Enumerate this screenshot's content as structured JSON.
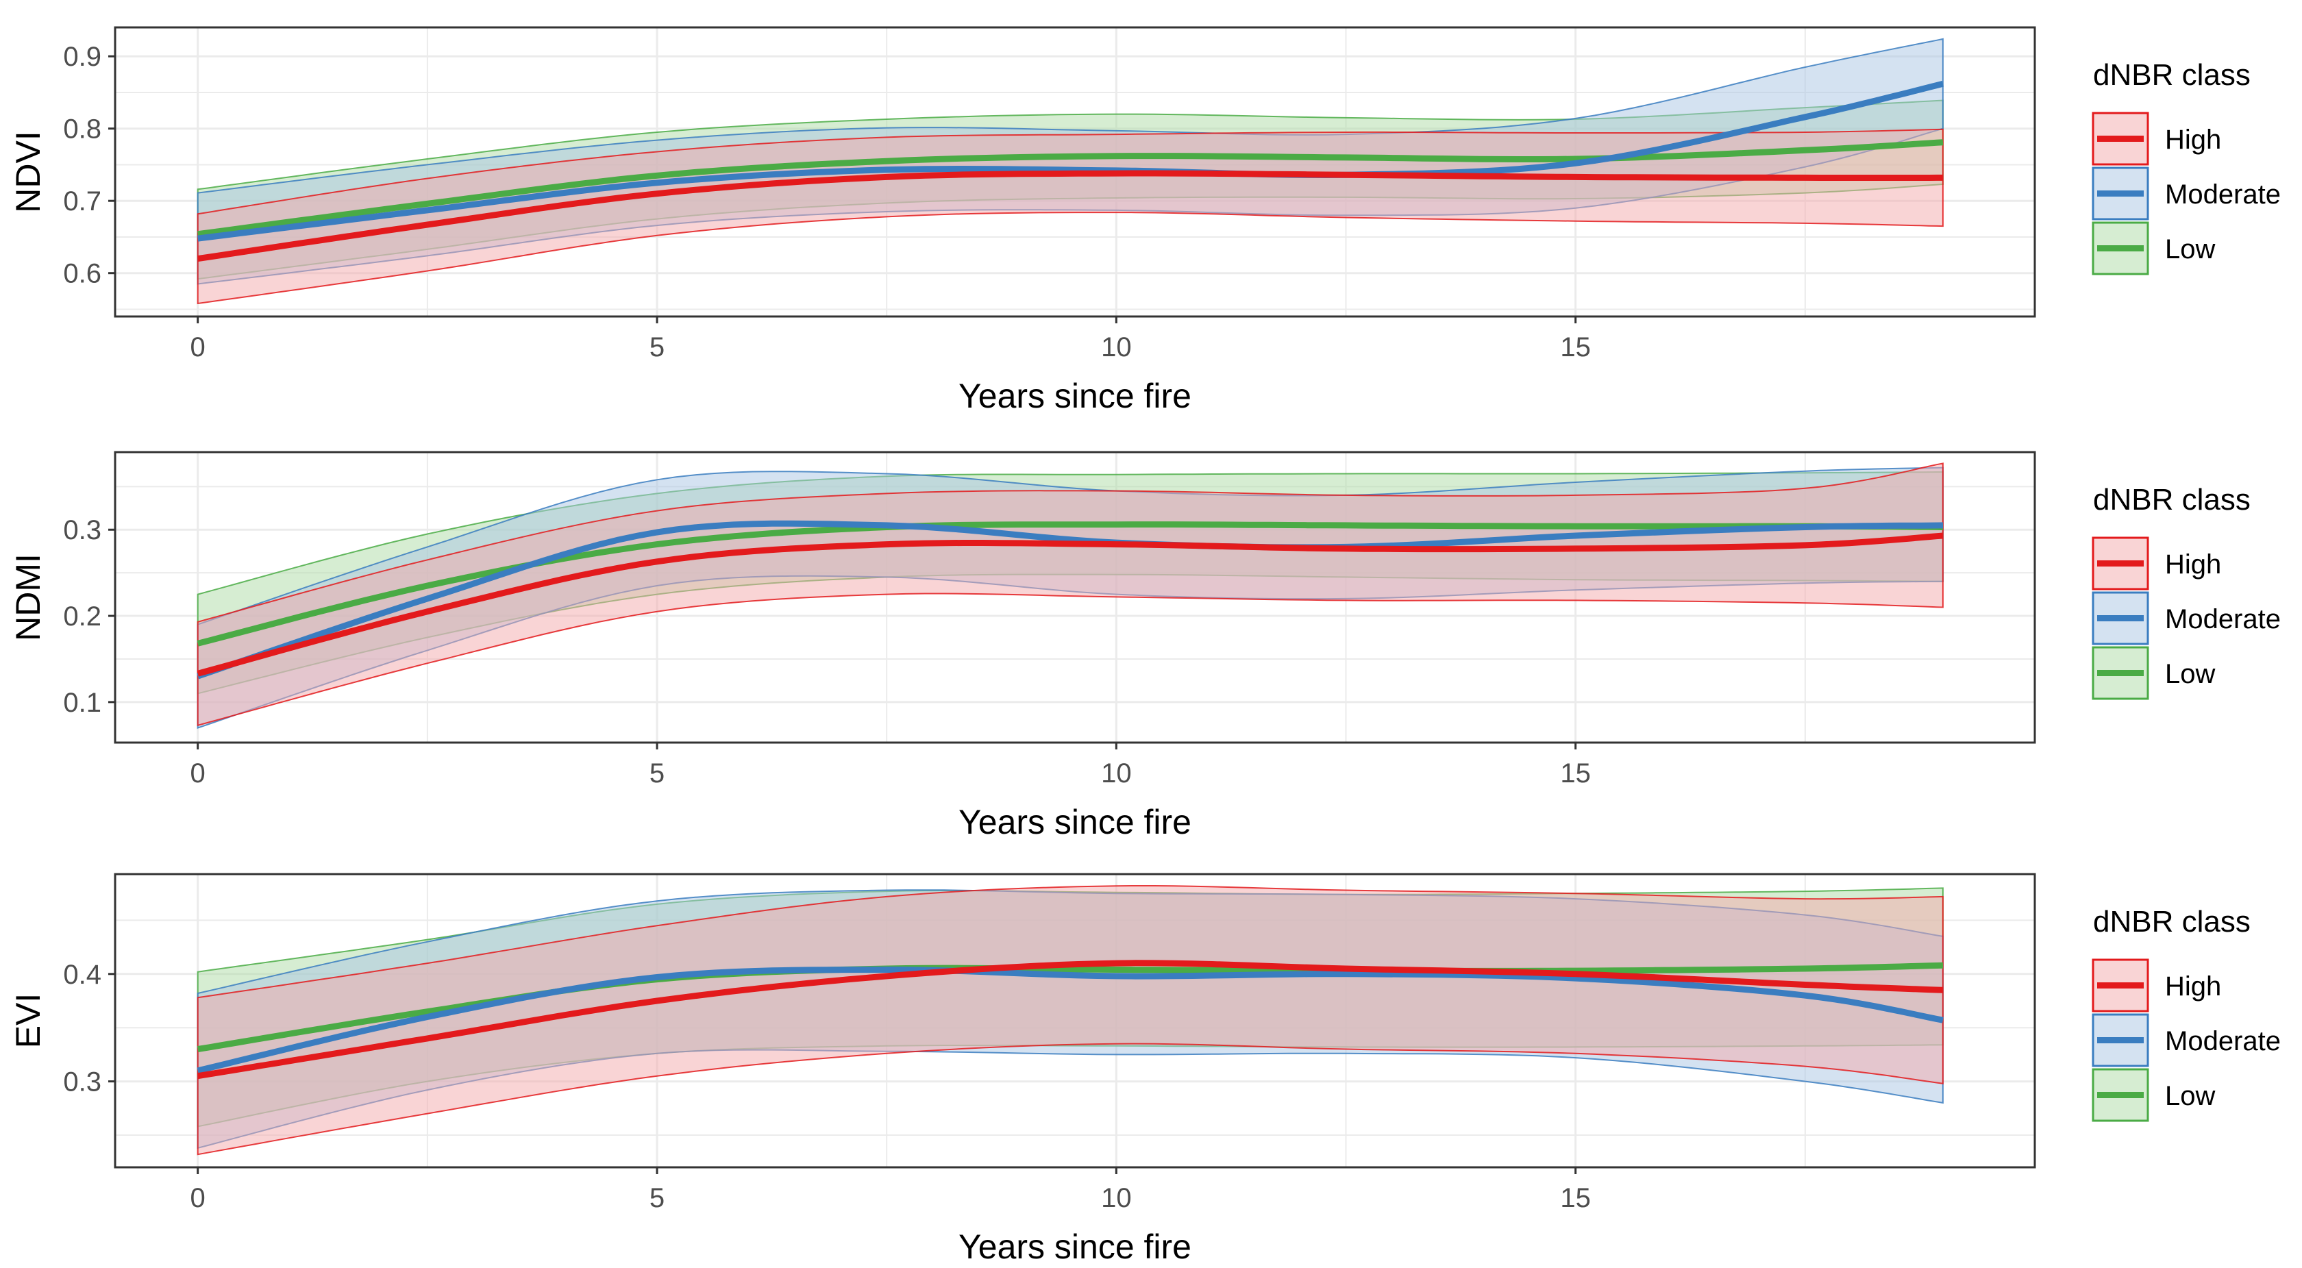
{
  "colors": {
    "High": "#e31a1c",
    "Moderate": "#3a7dc0",
    "Low": "#4aab45",
    "High_fill": "#f4a9ab",
    "Moderate_fill": "#a9c6e4",
    "Low_fill": "#addca6",
    "grid": "#ebebeb",
    "panel_border": "#333333"
  },
  "chart_data": [
    {
      "type": "line",
      "ylabel": "NDVI",
      "xlabel": "Years since fire",
      "xlim": [
        -0.9,
        20
      ],
      "ylim": [
        0.54,
        0.94
      ],
      "x_ticks": [
        0,
        5,
        10,
        15
      ],
      "x_tick_labels": [
        "0",
        "5",
        "10",
        "15"
      ],
      "y_ticks": [
        0.6,
        0.7,
        0.8,
        0.9
      ],
      "y_tick_labels": [
        "0.6",
        "0.7",
        "0.8",
        "0.9"
      ],
      "legend": {
        "title": "dNBR class",
        "items": [
          "High",
          "Moderate",
          "Low"
        ]
      },
      "x": [
        0,
        2.5,
        5,
        7.5,
        10,
        12.5,
        15,
        17.5,
        19
      ],
      "series": [
        {
          "name": "Low",
          "values": [
            0.654,
            0.696,
            0.735,
            0.755,
            0.762,
            0.76,
            0.758,
            0.77,
            0.781
          ],
          "lower": [
            0.592,
            0.633,
            0.675,
            0.697,
            0.704,
            0.705,
            0.703,
            0.711,
            0.723
          ],
          "upper": [
            0.716,
            0.758,
            0.795,
            0.813,
            0.82,
            0.815,
            0.813,
            0.829,
            0.839
          ]
        },
        {
          "name": "Moderate",
          "values": [
            0.648,
            0.687,
            0.725,
            0.743,
            0.742,
            0.736,
            0.752,
            0.816,
            0.862
          ],
          "lower": [
            0.585,
            0.624,
            0.666,
            0.685,
            0.687,
            0.68,
            0.69,
            0.747,
            0.8
          ],
          "upper": [
            0.711,
            0.75,
            0.784,
            0.801,
            0.797,
            0.792,
            0.814,
            0.885,
            0.924
          ]
        },
        {
          "name": "High",
          "values": [
            0.62,
            0.667,
            0.71,
            0.733,
            0.738,
            0.736,
            0.733,
            0.732,
            0.732
          ],
          "lower": [
            0.558,
            0.603,
            0.652,
            0.678,
            0.684,
            0.677,
            0.672,
            0.669,
            0.665
          ],
          "upper": [
            0.682,
            0.731,
            0.768,
            0.788,
            0.792,
            0.795,
            0.794,
            0.795,
            0.799
          ]
        }
      ]
    },
    {
      "type": "line",
      "ylabel": "NDMI",
      "xlabel": "Years since fire",
      "xlim": [
        -0.9,
        20
      ],
      "ylim": [
        0.053,
        0.39
      ],
      "x_ticks": [
        0,
        5,
        10,
        15
      ],
      "x_tick_labels": [
        "0",
        "5",
        "10",
        "15"
      ],
      "y_ticks": [
        0.1,
        0.2,
        0.3
      ],
      "y_tick_labels": [
        "0.1",
        "0.2",
        "0.3"
      ],
      "legend": {
        "title": "dNBR class",
        "items": [
          "High",
          "Moderate",
          "Low"
        ]
      },
      "x": [
        0,
        2.5,
        5,
        7.5,
        10,
        12.5,
        15,
        17.5,
        19
      ],
      "series": [
        {
          "name": "Low",
          "values": [
            0.168,
            0.235,
            0.283,
            0.303,
            0.306,
            0.305,
            0.304,
            0.304,
            0.303
          ],
          "lower": [
            0.11,
            0.175,
            0.225,
            0.245,
            0.248,
            0.245,
            0.242,
            0.241,
            0.24
          ],
          "upper": [
            0.225,
            0.295,
            0.342,
            0.362,
            0.364,
            0.365,
            0.365,
            0.366,
            0.367
          ]
        },
        {
          "name": "Moderate",
          "values": [
            0.13,
            0.22,
            0.297,
            0.305,
            0.285,
            0.28,
            0.293,
            0.303,
            0.305
          ],
          "lower": [
            0.07,
            0.16,
            0.235,
            0.245,
            0.225,
            0.22,
            0.23,
            0.238,
            0.24
          ],
          "upper": [
            0.19,
            0.28,
            0.358,
            0.365,
            0.345,
            0.34,
            0.355,
            0.368,
            0.372
          ]
        },
        {
          "name": "High",
          "values": [
            0.133,
            0.205,
            0.263,
            0.283,
            0.283,
            0.278,
            0.278,
            0.282,
            0.293
          ],
          "lower": [
            0.073,
            0.145,
            0.205,
            0.225,
            0.222,
            0.218,
            0.218,
            0.215,
            0.21
          ],
          "upper": [
            0.193,
            0.265,
            0.322,
            0.342,
            0.345,
            0.34,
            0.34,
            0.348,
            0.377
          ]
        }
      ]
    },
    {
      "type": "line",
      "ylabel": "EVI",
      "xlabel": "Years since fire",
      "xlim": [
        -0.9,
        20
      ],
      "ylim": [
        0.22,
        0.493
      ],
      "x_ticks": [
        0,
        5,
        10,
        15
      ],
      "x_tick_labels": [
        "0",
        "5",
        "10",
        "15"
      ],
      "y_ticks": [
        0.3,
        0.4
      ],
      "y_tick_labels": [
        "0.3",
        "0.4"
      ],
      "legend": {
        "title": "dNBR class",
        "items": [
          "High",
          "Moderate",
          "Low"
        ]
      },
      "x": [
        0,
        2.5,
        5,
        7.5,
        10,
        12.5,
        15,
        17.5,
        19
      ],
      "series": [
        {
          "name": "Low",
          "values": [
            0.33,
            0.365,
            0.395,
            0.405,
            0.404,
            0.403,
            0.403,
            0.405,
            0.408
          ],
          "lower": [
            0.258,
            0.3,
            0.326,
            0.333,
            0.333,
            0.332,
            0.332,
            0.333,
            0.334
          ],
          "upper": [
            0.402,
            0.432,
            0.465,
            0.477,
            0.476,
            0.474,
            0.475,
            0.477,
            0.48
          ]
        },
        {
          "name": "Moderate",
          "values": [
            0.31,
            0.36,
            0.397,
            0.404,
            0.398,
            0.4,
            0.396,
            0.38,
            0.357
          ],
          "lower": [
            0.238,
            0.292,
            0.326,
            0.328,
            0.325,
            0.326,
            0.322,
            0.3,
            0.28
          ],
          "upper": [
            0.382,
            0.43,
            0.468,
            0.478,
            0.475,
            0.474,
            0.47,
            0.455,
            0.435
          ]
        },
        {
          "name": "High",
          "values": [
            0.305,
            0.34,
            0.375,
            0.398,
            0.41,
            0.405,
            0.4,
            0.39,
            0.385
          ],
          "lower": [
            0.232,
            0.27,
            0.305,
            0.326,
            0.335,
            0.33,
            0.326,
            0.314,
            0.298
          ],
          "upper": [
            0.378,
            0.41,
            0.445,
            0.472,
            0.482,
            0.478,
            0.475,
            0.47,
            0.472
          ]
        }
      ]
    }
  ]
}
